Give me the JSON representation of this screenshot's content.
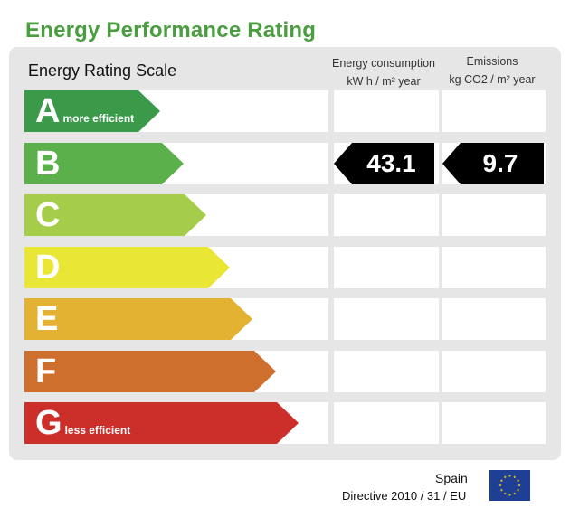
{
  "title": "Energy Performance Rating",
  "scale_label": "Energy Rating Scale",
  "columns": {
    "energy": {
      "line1": "Energy consumption",
      "line2": "kW h / m² year"
    },
    "emissions": {
      "line1": "Emissions",
      "line2": "kg CO2 / m² year"
    }
  },
  "ratings": [
    {
      "letter": "A",
      "sub": "more efficient",
      "color": "#3a9a4a"
    },
    {
      "letter": "B",
      "sub": "",
      "color": "#5bb04c"
    },
    {
      "letter": "C",
      "sub": "",
      "color": "#a6cd4a"
    },
    {
      "letter": "D",
      "sub": "",
      "color": "#eae636"
    },
    {
      "letter": "E",
      "sub": "",
      "color": "#e4b232"
    },
    {
      "letter": "F",
      "sub": "",
      "color": "#cf6f2e"
    },
    {
      "letter": "G",
      "sub": "less efficient",
      "color": "#cc2f2a"
    }
  ],
  "current_rating": "B",
  "energy_value": "43.1",
  "emissions_value": "9.7",
  "tag_color": "#000000",
  "footer": {
    "country": "Spain",
    "directive": "Directive 2010 / 31 / EU"
  },
  "eu_flag_icon": "eu-flag-icon"
}
